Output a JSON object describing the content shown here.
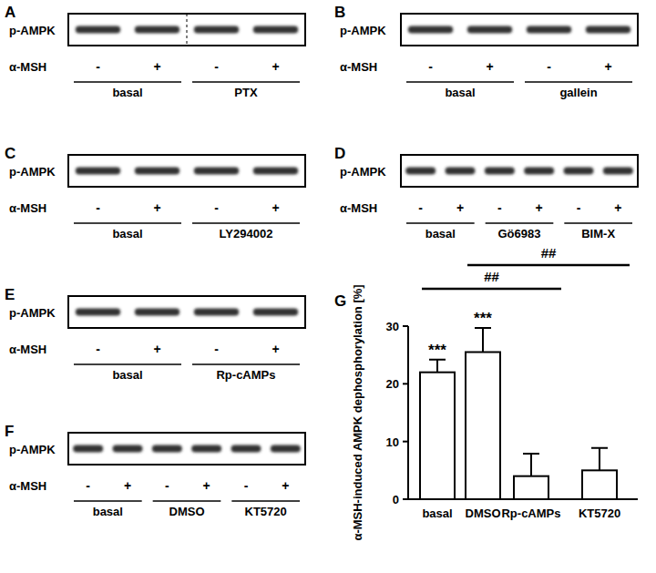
{
  "blots": [
    {
      "panel": "A",
      "band_label": "p-AMPK",
      "treatment_label": "α-MSH",
      "lanes": [
        "-",
        "+",
        "-",
        "+"
      ],
      "groups": [
        "basal",
        "PTX"
      ]
    },
    {
      "panel": "B",
      "band_label": "p-AMPK",
      "treatment_label": "α-MSH",
      "lanes": [
        "-",
        "+",
        "-",
        "+"
      ],
      "groups": [
        "basal",
        "gallein"
      ]
    },
    {
      "panel": "C",
      "band_label": "p-AMPK",
      "treatment_label": "α-MSH",
      "lanes": [
        "-",
        "+",
        "-",
        "+"
      ],
      "groups": [
        "basal",
        "LY294002"
      ]
    },
    {
      "panel": "D",
      "band_label": "p-AMPK",
      "treatment_label": "α-MSH",
      "lanes": [
        "-",
        "+",
        "-",
        "+",
        "-",
        "+"
      ],
      "groups": [
        "basal",
        "Gö6983",
        "BIM-X"
      ]
    },
    {
      "panel": "E",
      "band_label": "p-AMPK",
      "treatment_label": "α-MSH",
      "lanes": [
        "-",
        "+",
        "-",
        "+"
      ],
      "groups": [
        "basal",
        "Rp-cAMPs"
      ]
    },
    {
      "panel": "F",
      "band_label": "p-AMPK",
      "treatment_label": "α-MSH",
      "lanes": [
        "-",
        "+",
        "-",
        "+",
        "-",
        "+"
      ],
      "groups": [
        "basal",
        "DMSO",
        "KT5720"
      ]
    }
  ],
  "chart_panel": "G",
  "chart_data": {
    "type": "bar",
    "ylabel": "α-MSH-induced AMPK dephosphorylation [%]",
    "categories": [
      "basal",
      "DMSO",
      "Rp-cAMPs",
      "KT5720"
    ],
    "values": [
      22,
      25.5,
      4,
      5
    ],
    "errors": [
      2.2,
      4.2,
      3.9,
      3.9
    ],
    "color": "#ffffff",
    "ylim": [
      0,
      30
    ],
    "yticks": [
      0,
      10,
      20,
      30
    ],
    "annotations": [
      {
        "text": "***",
        "category": "basal"
      },
      {
        "text": "***",
        "category": "DMSO"
      }
    ],
    "brackets": [
      {
        "text": "##",
        "from": "basal",
        "to": "Rp-cAMPs"
      },
      {
        "text": "##",
        "from": "DMSO",
        "to": "KT5720"
      }
    ]
  }
}
